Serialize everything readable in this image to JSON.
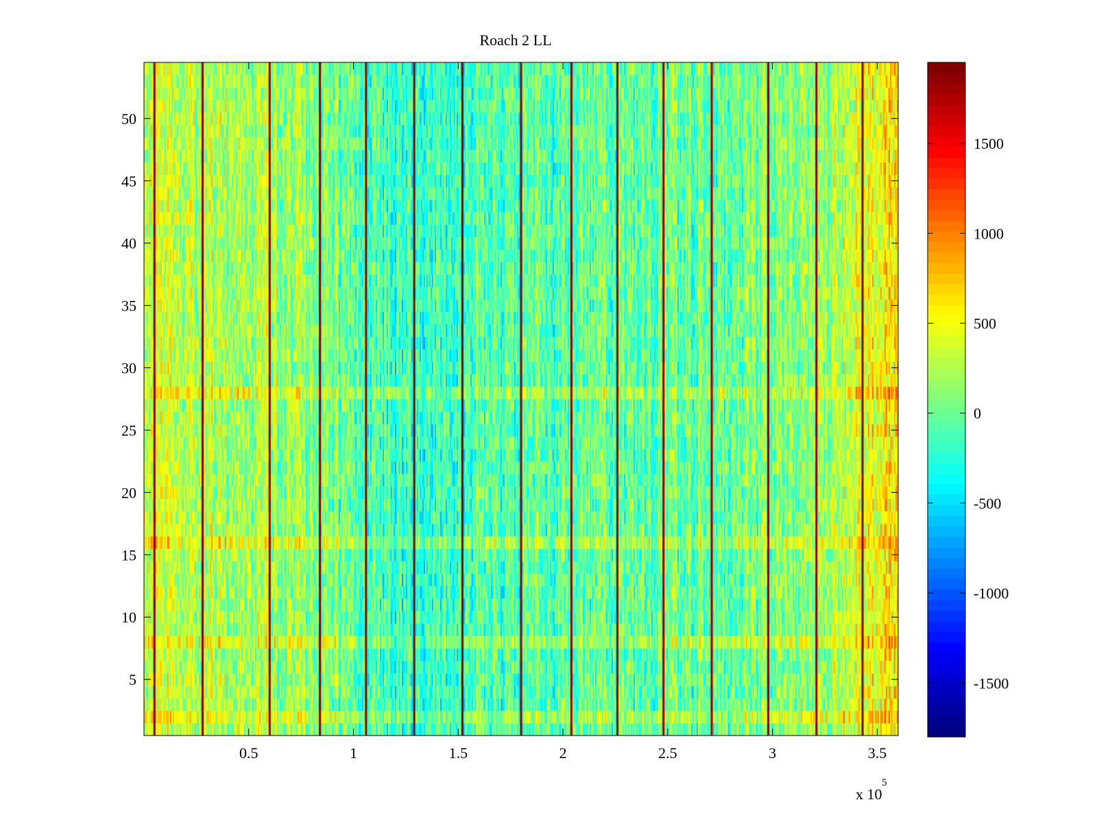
{
  "chart_data": {
    "type": "heatmap",
    "title": "Roach 2 LL",
    "xlabel": "",
    "ylabel": "",
    "x_multiplier_label": {
      "base": "x 10",
      "exponent": "5"
    },
    "xlim": [
      0,
      3.6
    ],
    "ylim": [
      0.5,
      54.5
    ],
    "x_ticks": [
      0.5,
      1,
      1.5,
      2,
      2.5,
      3,
      3.5
    ],
    "x_tick_labels": [
      "0.5",
      "1",
      "1.5",
      "2",
      "2.5",
      "3",
      "3.5"
    ],
    "y_ticks": [
      5,
      10,
      15,
      20,
      25,
      30,
      35,
      40,
      45,
      50
    ],
    "y_tick_labels": [
      "5",
      "10",
      "15",
      "20",
      "25",
      "30",
      "35",
      "40",
      "45",
      "50"
    ],
    "rows": 54,
    "colorbar": {
      "colormap": "jet",
      "clim": [
        -1800,
        1950
      ],
      "ticks": [
        -1500,
        -1000,
        -500,
        0,
        500,
        1000,
        1500
      ],
      "tick_labels": [
        "-1500",
        "-1000",
        "-500",
        "0",
        "500",
        "1000",
        "1500"
      ]
    },
    "high_value_columns_x": [
      0.05,
      0.28,
      0.6,
      0.84,
      1.06,
      1.29,
      1.52,
      1.8,
      2.04,
      2.26,
      2.48,
      2.71,
      2.98,
      3.21,
      3.43
    ],
    "high_value_rows_y": [
      2,
      8,
      16,
      28
    ],
    "background_level_by_x": [
      {
        "x": 0.0,
        "value": 300
      },
      {
        "x": 0.4,
        "value": 250
      },
      {
        "x": 0.8,
        "value": 100
      },
      {
        "x": 1.2,
        "value": -200
      },
      {
        "x": 1.6,
        "value": -100
      },
      {
        "x": 2.0,
        "value": -50
      },
      {
        "x": 2.4,
        "value": 0
      },
      {
        "x": 2.8,
        "value": 0
      },
      {
        "x": 3.2,
        "value": 200
      },
      {
        "x": 3.6,
        "value": 600
      }
    ]
  }
}
